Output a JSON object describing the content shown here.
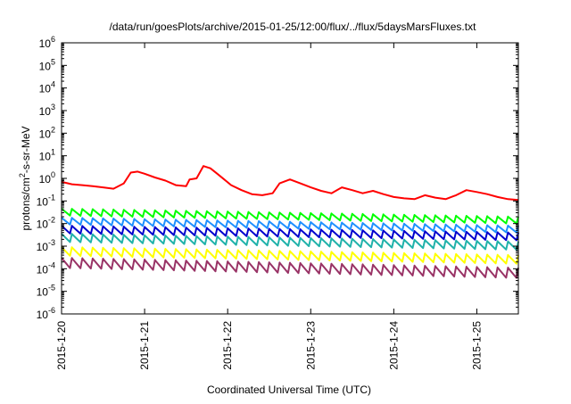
{
  "chart_data": {
    "type": "line",
    "title": "/data/run/goesPlots/archive/2015-01-25/12:00/flux/../flux/5daysMarsFluxes.txt",
    "xlabel": "Coordinated Universal Time (UTC)",
    "ylabel_parts": [
      "protons/cm",
      "2",
      "-s-sr-MeV"
    ],
    "ylog": true,
    "ylim": [
      1e-06,
      1000000.0
    ],
    "yticks": [
      {
        "base": "10",
        "exp": "-6",
        "value": 1e-06
      },
      {
        "base": "10",
        "exp": "-5",
        "value": 1e-05
      },
      {
        "base": "10",
        "exp": "-4",
        "value": 0.0001
      },
      {
        "base": "10",
        "exp": "-3",
        "value": 0.001
      },
      {
        "base": "10",
        "exp": "-2",
        "value": 0.01
      },
      {
        "base": "10",
        "exp": "-1",
        "value": 0.1
      },
      {
        "base": "10",
        "exp": "0",
        "value": 1
      },
      {
        "base": "10",
        "exp": "1",
        "value": 10
      },
      {
        "base": "10",
        "exp": "2",
        "value": 100
      },
      {
        "base": "10",
        "exp": "3",
        "value": 1000
      },
      {
        "base": "10",
        "exp": "4",
        "value": 10000
      },
      {
        "base": "10",
        "exp": "5",
        "value": 100000
      },
      {
        "base": "10",
        "exp": "6",
        "value": 1000000
      }
    ],
    "xlim": [
      "2015-01-20T00:00",
      "2015-01-25T12:00"
    ],
    "xticks": [
      {
        "label": "2015-1-20",
        "value": "2015-01-20T00:00"
      },
      {
        "label": "2015-1-21",
        "value": "2015-01-21T00:00"
      },
      {
        "label": "2015-1-22",
        "value": "2015-01-22T00:00"
      },
      {
        "label": "2015-1-23",
        "value": "2015-01-23T00:00"
      },
      {
        "label": "2015-1-24",
        "value": "2015-01-24T00:00"
      },
      {
        "label": "2015-1-25",
        "value": "2015-01-25T00:00"
      }
    ],
    "grid": false,
    "legend": "none",
    "series": [
      {
        "color": "#ff0000",
        "x": [
          "2015-01-20T00:00",
          "2015-01-20T03:00",
          "2015-01-20T06:00",
          "2015-01-20T09:00",
          "2015-01-20T12:00",
          "2015-01-20T15:00",
          "2015-01-20T18:00",
          "2015-01-20T20:00",
          "2015-01-20T22:00",
          "2015-01-21T00:00",
          "2015-01-21T03:00",
          "2015-01-21T06:00",
          "2015-01-21T09:00",
          "2015-01-21T12:00",
          "2015-01-21T13:00",
          "2015-01-21T15:00",
          "2015-01-21T17:00",
          "2015-01-21T19:00",
          "2015-01-21T21:00",
          "2015-01-21T23:00",
          "2015-01-22T01:00",
          "2015-01-22T04:00",
          "2015-01-22T07:00",
          "2015-01-22T10:00",
          "2015-01-22T13:00",
          "2015-01-22T15:00",
          "2015-01-22T18:00",
          "2015-01-22T21:00",
          "2015-01-23T00:00",
          "2015-01-23T03:00",
          "2015-01-23T06:00",
          "2015-01-23T09:00",
          "2015-01-23T12:00",
          "2015-01-23T15:00",
          "2015-01-23T18:00",
          "2015-01-23T21:00",
          "2015-01-24T00:00",
          "2015-01-24T03:00",
          "2015-01-24T06:00",
          "2015-01-24T09:00",
          "2015-01-24T12:00",
          "2015-01-24T15:00",
          "2015-01-24T18:00",
          "2015-01-24T21:00",
          "2015-01-25T00:00",
          "2015-01-25T03:00",
          "2015-01-25T06:00",
          "2015-01-25T09:00",
          "2015-01-25T12:00"
        ],
        "y": [
          0.7,
          0.55,
          0.5,
          0.45,
          0.4,
          0.35,
          0.6,
          1.8,
          2.0,
          1.6,
          1.1,
          0.8,
          0.5,
          0.45,
          0.9,
          1.0,
          3.5,
          2.8,
          1.6,
          0.9,
          0.5,
          0.3,
          0.2,
          0.18,
          0.22,
          0.6,
          0.9,
          0.6,
          0.4,
          0.28,
          0.22,
          0.4,
          0.3,
          0.22,
          0.28,
          0.2,
          0.15,
          0.13,
          0.12,
          0.18,
          0.14,
          0.12,
          0.18,
          0.3,
          0.25,
          0.2,
          0.15,
          0.12,
          0.11
        ]
      },
      {
        "color": "#00ff00",
        "base": 0.045,
        "end": 0.02,
        "amp": 2.0,
        "period_hours": 3
      },
      {
        "color": "#1e90ff",
        "base": 0.018,
        "end": 0.008,
        "amp": 2.0,
        "period_hours": 3
      },
      {
        "color": "#0000cd",
        "base": 0.008,
        "end": 0.004,
        "amp": 2.2,
        "period_hours": 3
      },
      {
        "color": "#20b2aa",
        "base": 0.0035,
        "end": 0.0016,
        "amp": 2.3,
        "period_hours": 3
      },
      {
        "color": "#ffff00",
        "base": 0.0009,
        "end": 0.0004,
        "amp": 2.4,
        "period_hours": 3
      },
      {
        "color": "#993366",
        "base": 0.0003,
        "end": 0.00011,
        "amp": 2.8,
        "period_hours": 3
      }
    ]
  }
}
